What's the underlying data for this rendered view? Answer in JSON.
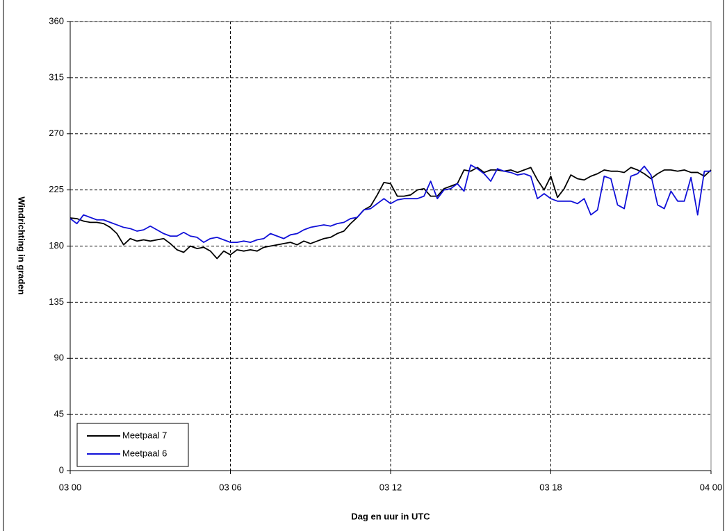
{
  "chart_data": {
    "type": "line",
    "xlabel": "Dag en uur in UTC",
    "ylabel": "Windrichting in graden",
    "x": [
      0,
      0.25,
      0.5,
      0.75,
      1,
      1.25,
      1.5,
      1.75,
      2,
      2.25,
      2.5,
      2.75,
      3,
      3.25,
      3.5,
      3.75,
      4,
      4.25,
      4.5,
      4.75,
      5,
      5.25,
      5.5,
      5.75,
      6,
      6.25,
      6.5,
      6.75,
      7,
      7.25,
      7.5,
      7.75,
      8,
      8.25,
      8.5,
      8.75,
      9,
      9.25,
      9.5,
      9.75,
      10,
      10.25,
      10.5,
      10.75,
      11,
      11.25,
      11.5,
      11.75,
      12,
      12.25,
      12.5,
      12.75,
      13,
      13.25,
      13.5,
      13.75,
      14,
      14.25,
      14.5,
      14.75,
      15,
      15.25,
      15.5,
      15.75,
      16,
      16.25,
      16.5,
      16.75,
      17,
      17.25,
      17.5,
      17.75,
      18,
      18.25,
      18.5,
      18.75,
      19,
      19.25,
      19.5,
      19.75,
      20,
      20.25,
      20.5,
      20.75,
      21,
      21.25,
      21.5,
      21.75,
      22,
      22.25,
      22.5,
      22.75,
      23,
      23.25,
      23.5,
      23.75,
      24
    ],
    "series": [
      {
        "name": "Meetpaal 7",
        "color": "#000000",
        "values": [
          202.5,
          202,
          200,
          199,
          199,
          198,
          195,
          190,
          181,
          186,
          184,
          185,
          184,
          185,
          186,
          182,
          177,
          175,
          180,
          178,
          179,
          176,
          170,
          176,
          173,
          177,
          176,
          177,
          176,
          179,
          180,
          181,
          182,
          183,
          181,
          184,
          182,
          184,
          186,
          187,
          190,
          192,
          198,
          203,
          209,
          212,
          221,
          231,
          230,
          220,
          220,
          221,
          225,
          226,
          220,
          220,
          226,
          228,
          230,
          241,
          240,
          243,
          239,
          241,
          241,
          240,
          241,
          239,
          241,
          243,
          233,
          225,
          236,
          219,
          226,
          237,
          234,
          233,
          236,
          238,
          241,
          240,
          240,
          239,
          243,
          241,
          238,
          234,
          238,
          241,
          241,
          240,
          241,
          239,
          239,
          236,
          241
        ]
      },
      {
        "name": "Meetpaal 6",
        "color": "#1010d8",
        "values": [
          202,
          198,
          205,
          203,
          201,
          201,
          199,
          197,
          195,
          194,
          192,
          193,
          196,
          193,
          190,
          188,
          188,
          191,
          188,
          187,
          183,
          186,
          187,
          185,
          183,
          183,
          184,
          183,
          185,
          186,
          190,
          188,
          186,
          189,
          190,
          193,
          195,
          196,
          197,
          196,
          198,
          199,
          202,
          203,
          209,
          210,
          214,
          218,
          214,
          217,
          218,
          218,
          218,
          220,
          232,
          218,
          225,
          226,
          230,
          224,
          245,
          242,
          238,
          232,
          242,
          240,
          239,
          237,
          238,
          236,
          218,
          222,
          218,
          216,
          216,
          216,
          214,
          218,
          205,
          209,
          236,
          234,
          213,
          210,
          236,
          238,
          244,
          237,
          213,
          210,
          224,
          216,
          216,
          235,
          205,
          240,
          240
        ]
      }
    ],
    "xlim": [
      0,
      24
    ],
    "xticks": [
      {
        "value": 0,
        "label": "03 00"
      },
      {
        "value": 6,
        "label": "03 06"
      },
      {
        "value": 12,
        "label": "03 12"
      },
      {
        "value": 18,
        "label": "03 18"
      },
      {
        "value": 24,
        "label": "04 00"
      }
    ],
    "ylim": [
      0,
      360
    ],
    "yticks": [
      0,
      45,
      90,
      135,
      180,
      225,
      270,
      315,
      360
    ],
    "grid": true,
    "legend": "lower left"
  }
}
